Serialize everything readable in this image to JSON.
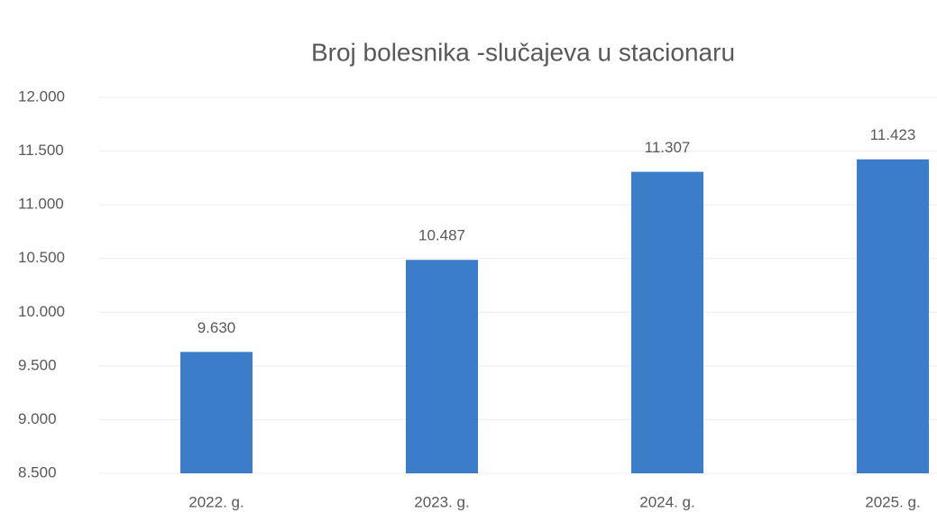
{
  "chart_data": {
    "type": "bar",
    "title": "Broj bolesnika -slučajeva u stacionaru",
    "categories": [
      "2022. g.",
      "2023. g.",
      "2024. g.",
      "2025. g."
    ],
    "values": [
      9630,
      10487,
      11307,
      11423
    ],
    "value_labels": [
      "9.630",
      "10.487",
      "11.307",
      "11.423"
    ],
    "color": "#3b7dc9",
    "ylim": [
      8500,
      12000
    ],
    "yticks": [
      {
        "value": 8500,
        "label": "8.500"
      },
      {
        "value": 9000,
        "label": "9.000"
      },
      {
        "value": 9500,
        "label": "9.500"
      },
      {
        "value": 10000,
        "label": "10.000"
      },
      {
        "value": 10500,
        "label": "10.500"
      },
      {
        "value": 11000,
        "label": "11.000"
      },
      {
        "value": 11500,
        "label": "11.500"
      },
      {
        "value": 12000,
        "label": "12.000"
      }
    ],
    "grid": true
  }
}
